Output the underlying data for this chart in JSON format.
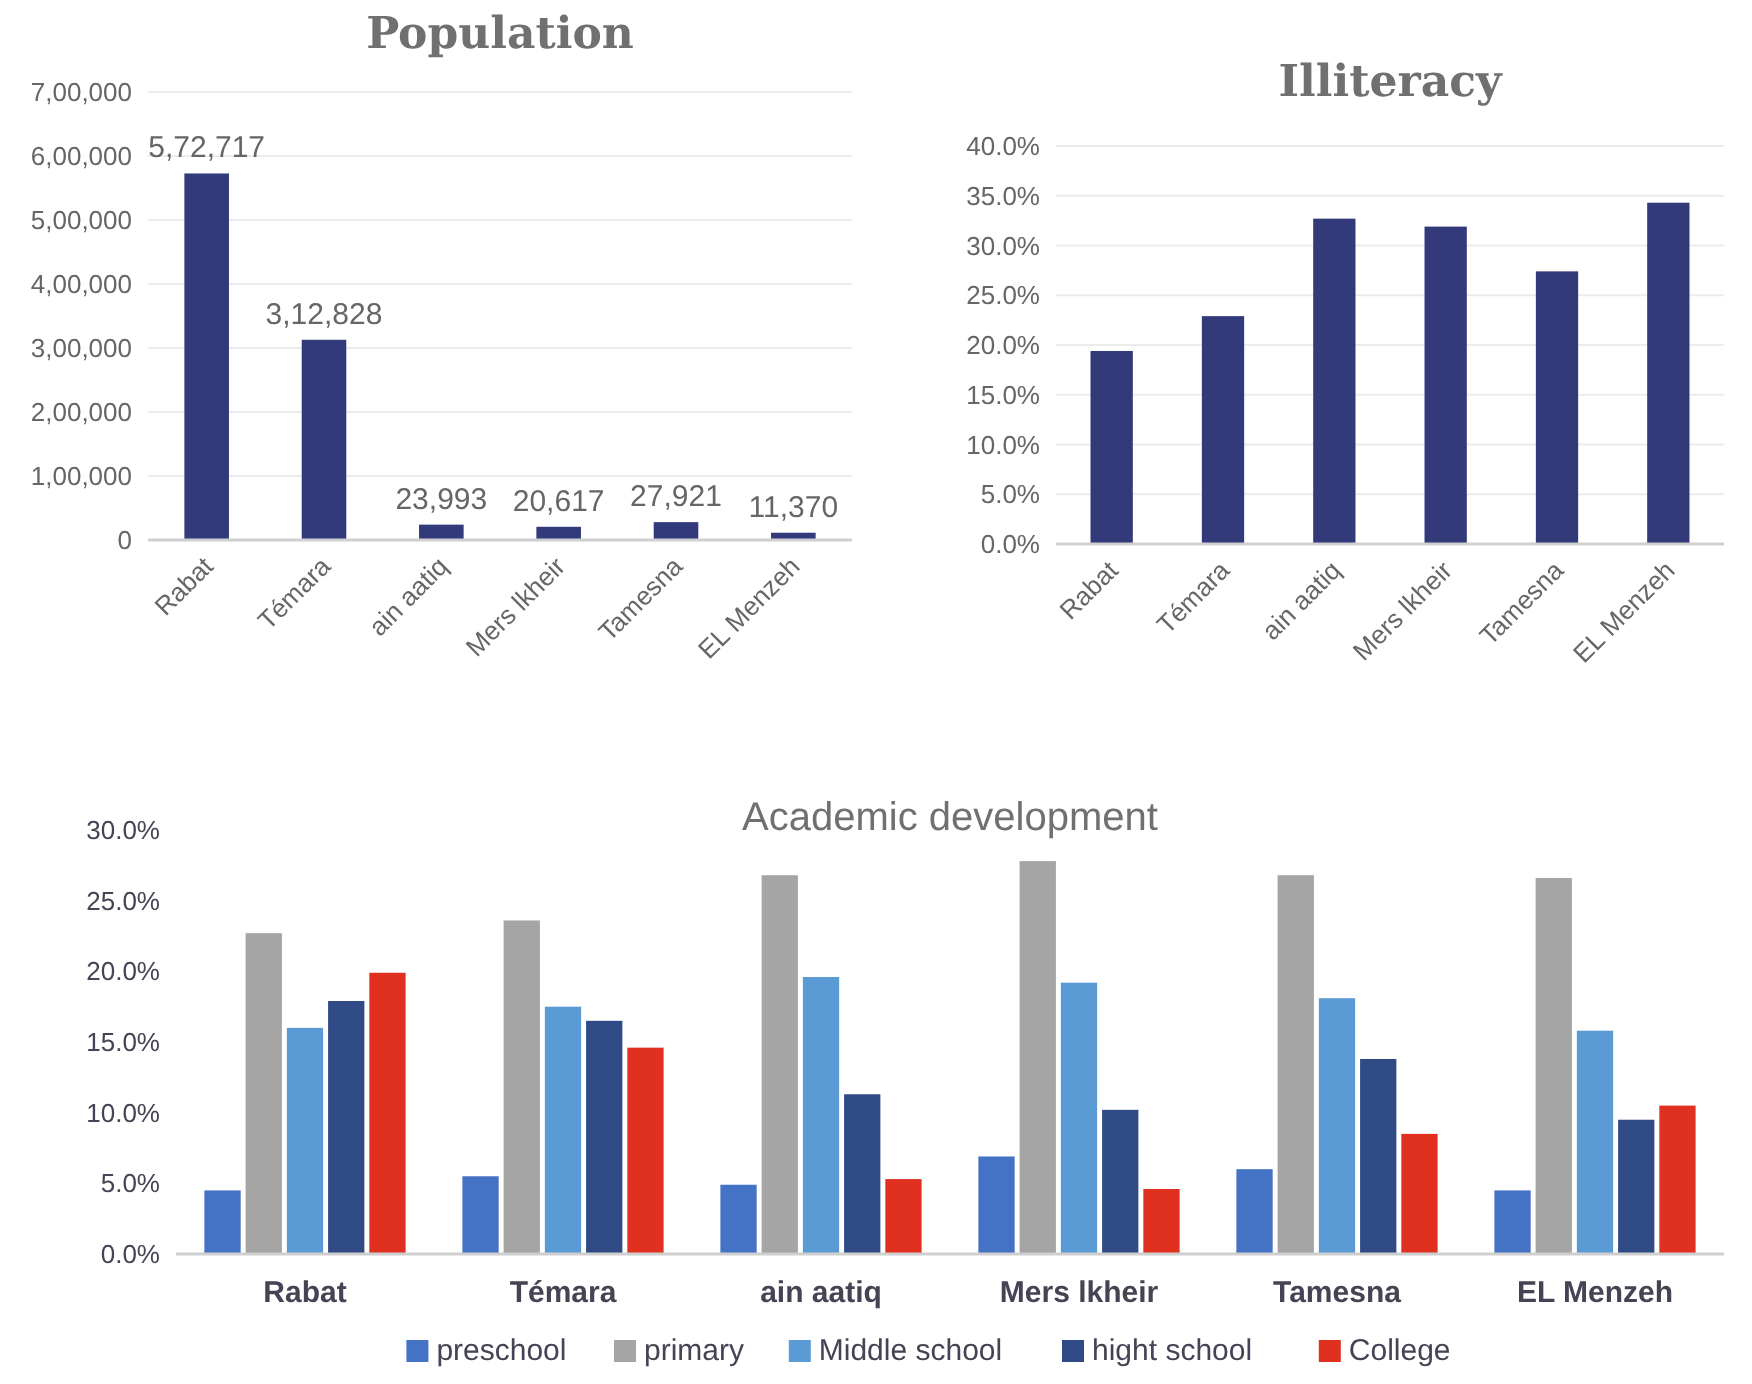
{
  "chart_data": [
    {
      "type": "bar",
      "title": "Population",
      "categories": [
        "Rabat",
        "Témara",
        "ain aatiq",
        "Mers lkheir",
        "Tamesna",
        "EL Menzeh"
      ],
      "values": [
        572717,
        312828,
        23993,
        20617,
        27921,
        11370
      ],
      "value_labels": [
        "5,72,717",
        "3,12,828",
        "23,993",
        "20,617",
        "27,921",
        "11,370"
      ],
      "color": "#333a7a",
      "ylim": [
        0,
        700000
      ],
      "yticks": [
        {
          "value": 0,
          "label": "0"
        },
        {
          "value": 100000,
          "label": "1,00,000"
        },
        {
          "value": 200000,
          "label": "2,00,000"
        },
        {
          "value": 300000,
          "label": "3,00,000"
        },
        {
          "value": 400000,
          "label": "4,00,000"
        },
        {
          "value": 500000,
          "label": "5,00,000"
        },
        {
          "value": 600000,
          "label": "6,00,000"
        },
        {
          "value": 700000,
          "label": "7,00,000"
        }
      ],
      "grid": "y",
      "legend": false
    },
    {
      "type": "bar",
      "title": "Illiteracy",
      "categories": [
        "Rabat",
        "Témara",
        "ain aatiq",
        "Mers lkheir",
        "Tamesna",
        "EL Menzeh"
      ],
      "values": [
        19.4,
        22.9,
        32.7,
        31.9,
        27.4,
        34.3
      ],
      "color": "#333a7a",
      "ylim": [
        0,
        40
      ],
      "yticks": [
        {
          "value": 0,
          "label": "0.0%"
        },
        {
          "value": 5,
          "label": "5.0%"
        },
        {
          "value": 10,
          "label": "10.0%"
        },
        {
          "value": 15,
          "label": "15.0%"
        },
        {
          "value": 20,
          "label": "20.0%"
        },
        {
          "value": 25,
          "label": "25.0%"
        },
        {
          "value": 30,
          "label": "30.0%"
        },
        {
          "value": 35,
          "label": "35.0%"
        },
        {
          "value": 40,
          "label": "40.0%"
        }
      ],
      "grid": "y",
      "legend": false
    },
    {
      "type": "bar",
      "title": "Academic development",
      "categories": [
        "Rabat",
        "Témara",
        "ain aatiq",
        "Mers lkheir",
        "Tamesna",
        "EL Menzeh"
      ],
      "series": [
        {
          "name": "preschool",
          "color": "#4472c4",
          "values": [
            4.5,
            5.5,
            4.9,
            6.9,
            6.0,
            4.5
          ]
        },
        {
          "name": "primary",
          "color": "#a5a5a5",
          "values": [
            22.7,
            23.6,
            26.8,
            27.8,
            26.8,
            26.6
          ]
        },
        {
          "name": "Middle school",
          "color": "#5b9bd5",
          "values": [
            16.0,
            17.5,
            19.6,
            19.2,
            18.1,
            15.8
          ]
        },
        {
          "name": "hight school",
          "color": "#2f4a85",
          "values": [
            17.9,
            16.5,
            11.3,
            10.2,
            13.8,
            9.5
          ]
        },
        {
          "name": "College",
          "color": "#e03020",
          "values": [
            19.9,
            14.6,
            5.3,
            4.6,
            8.5,
            10.5
          ]
        }
      ],
      "ylim": [
        0,
        30
      ],
      "yticks": [
        {
          "value": 0,
          "label": "0.0%"
        },
        {
          "value": 5,
          "label": "5.0%"
        },
        {
          "value": 10,
          "label": "10.0%"
        },
        {
          "value": 15,
          "label": "15.0%"
        },
        {
          "value": 20,
          "label": "20.0%"
        },
        {
          "value": 25,
          "label": "25.0%"
        },
        {
          "value": 30,
          "label": "30.0%"
        }
      ],
      "grid": false,
      "legend": "bottom"
    }
  ]
}
